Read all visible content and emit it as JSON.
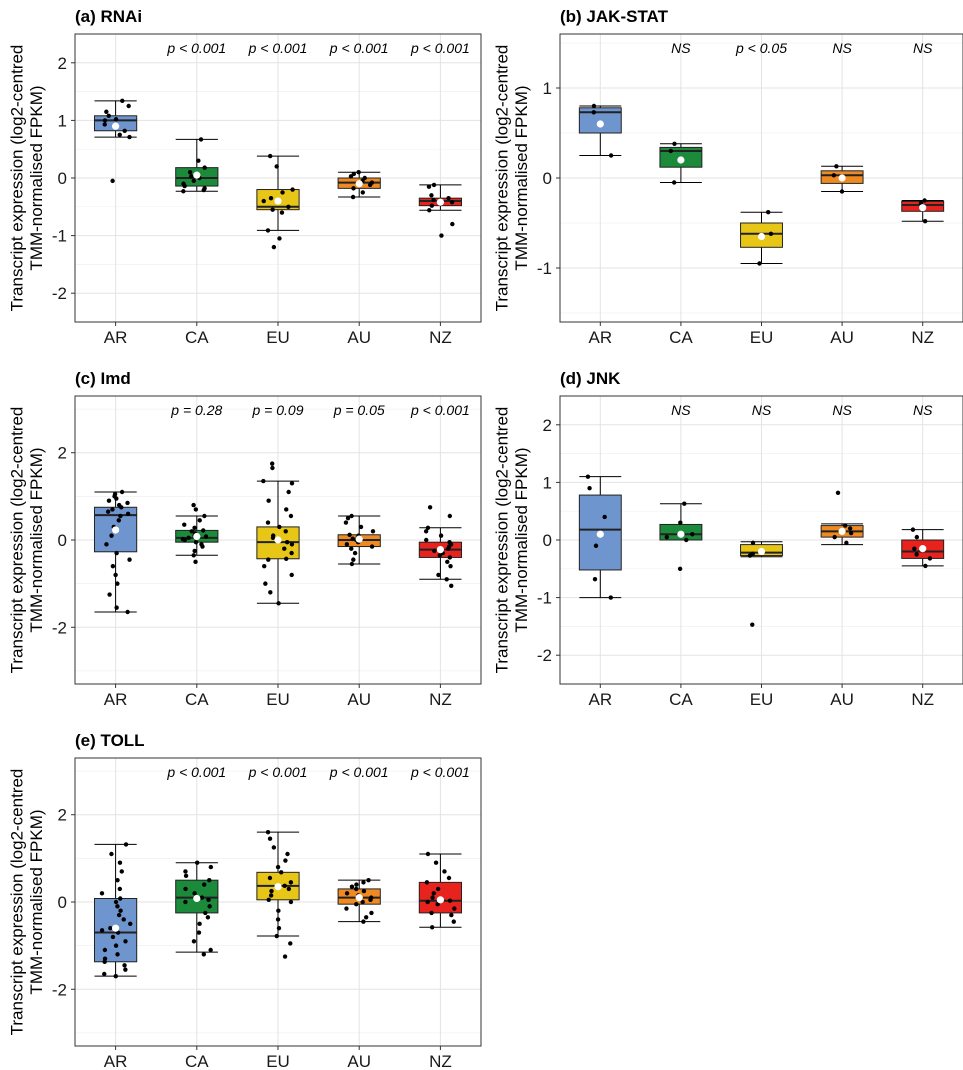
{
  "y_label_lines": [
    "Transcript expression (log2-centred",
    "TMM-normalised FPKM)"
  ],
  "colors": {
    "AR": "#6f95cf",
    "CA": "#1b8a3a",
    "EU": "#e8c618",
    "AU": "#ef8a23",
    "NZ": "#e8231e"
  },
  "chart_data": [
    {
      "type": "box",
      "title": "(a) RNAi",
      "categories": [
        "AR",
        "CA",
        "EU",
        "AU",
        "NZ"
      ],
      "ylim": [
        -2.5,
        2.5
      ],
      "yticks": [
        -2,
        -1,
        0,
        1,
        2
      ],
      "grid": true,
      "p_values": [
        "",
        "p < 0.001",
        "p < 0.001",
        "p < 0.001",
        "p < 0.001"
      ],
      "boxes": [
        {
          "category": "AR",
          "whisker_low": 0.71,
          "q1": 0.82,
          "median": 1.0,
          "q3": 1.08,
          "whisker_high": 1.34,
          "mean": 0.9,
          "points": [
            -0.05,
            0.71,
            0.75,
            0.82,
            0.93,
            1.0,
            1.02,
            1.08,
            1.15,
            1.25,
            1.34
          ]
        },
        {
          "category": "CA",
          "whisker_low": -0.23,
          "q1": -0.14,
          "median": 0.0,
          "q3": 0.18,
          "whisker_high": 0.67,
          "mean": 0.05,
          "points": [
            -0.23,
            -0.21,
            -0.18,
            -0.14,
            -0.1,
            -0.05,
            0.0,
            0.03,
            0.1,
            0.18,
            0.3,
            0.67
          ]
        },
        {
          "category": "EU",
          "whisker_low": -0.91,
          "q1": -0.55,
          "median": -0.5,
          "q3": -0.2,
          "whisker_high": 0.38,
          "mean": -0.4,
          "points": [
            -1.2,
            -1.05,
            -0.91,
            -0.6,
            -0.55,
            -0.5,
            -0.4,
            -0.35,
            -0.25,
            -0.2,
            0.2,
            0.38
          ]
        },
        {
          "category": "AU",
          "whisker_low": -0.33,
          "q1": -0.18,
          "median": -0.08,
          "q3": 0.0,
          "whisker_high": 0.1,
          "mean": -0.1,
          "points": [
            -0.33,
            -0.25,
            -0.18,
            -0.12,
            -0.08,
            -0.05,
            0.0,
            0.03,
            0.07,
            0.1
          ]
        },
        {
          "category": "NZ",
          "whisker_low": -0.56,
          "q1": -0.48,
          "median": -0.4,
          "q3": -0.35,
          "whisker_high": -0.12,
          "mean": -0.42,
          "points": [
            -1.0,
            -0.8,
            -0.56,
            -0.48,
            -0.42,
            -0.38,
            -0.35,
            -0.3,
            -0.15,
            -0.12
          ]
        }
      ]
    },
    {
      "type": "box",
      "title": "(b) JAK-STAT",
      "categories": [
        "AR",
        "CA",
        "EU",
        "AU",
        "NZ"
      ],
      "ylim": [
        -1.6,
        1.6
      ],
      "yticks": [
        -1,
        0,
        1
      ],
      "grid": true,
      "p_values": [
        "",
        "NS",
        "p < 0.05",
        "NS",
        "NS"
      ],
      "boxes": [
        {
          "category": "AR",
          "whisker_low": 0.25,
          "q1": 0.5,
          "median": 0.73,
          "q3": 0.78,
          "whisker_high": 0.8,
          "mean": 0.6,
          "points": [
            0.25,
            0.73,
            0.8
          ]
        },
        {
          "category": "CA",
          "whisker_low": -0.05,
          "q1": 0.12,
          "median": 0.3,
          "q3": 0.34,
          "whisker_high": 0.38,
          "mean": 0.2,
          "points": [
            -0.05,
            0.3,
            0.38
          ]
        },
        {
          "category": "EU",
          "whisker_low": -0.95,
          "q1": -0.77,
          "median": -0.62,
          "q3": -0.5,
          "whisker_high": -0.38,
          "mean": -0.65,
          "points": [
            -0.95,
            -0.62,
            -0.38
          ]
        },
        {
          "category": "AU",
          "whisker_low": -0.15,
          "q1": -0.06,
          "median": 0.03,
          "q3": 0.08,
          "whisker_high": 0.13,
          "mean": 0.0,
          "points": [
            -0.15,
            0.03,
            0.13
          ]
        },
        {
          "category": "NZ",
          "whisker_low": -0.48,
          "q1": -0.37,
          "median": -0.3,
          "q3": -0.26,
          "whisker_high": -0.25,
          "mean": -0.33,
          "points": [
            -0.48,
            -0.28,
            -0.25
          ]
        }
      ]
    },
    {
      "type": "box",
      "title": "(c) Imd",
      "categories": [
        "AR",
        "CA",
        "EU",
        "AU",
        "NZ"
      ],
      "ylim": [
        -3.3,
        3.3
      ],
      "yticks": [
        -2,
        0,
        2
      ],
      "grid": true,
      "p_values": [
        "",
        "p = 0.28",
        "p = 0.09",
        "p = 0.05",
        "p < 0.001"
      ],
      "boxes": [
        {
          "category": "AR",
          "whisker_low": -1.65,
          "q1": -0.27,
          "median": 0.57,
          "q3": 0.75,
          "whisker_high": 1.1,
          "mean": 0.23,
          "points": [
            -1.65,
            -1.55,
            -1.25,
            -1.0,
            -0.8,
            -0.6,
            -0.45,
            -0.3,
            -0.1,
            0.1,
            0.3,
            0.45,
            0.55,
            0.6,
            0.65,
            0.7,
            0.75,
            0.8,
            0.85,
            0.9,
            0.95,
            1.0,
            1.05,
            1.1
          ]
        },
        {
          "category": "CA",
          "whisker_low": -0.35,
          "q1": -0.05,
          "median": 0.05,
          "q3": 0.22,
          "whisker_high": 0.55,
          "mean": 0.08,
          "points": [
            -0.5,
            -0.35,
            -0.25,
            -0.15,
            -0.1,
            -0.05,
            0.0,
            0.02,
            0.05,
            0.08,
            0.1,
            0.15,
            0.2,
            0.22,
            0.28,
            0.35,
            0.45,
            0.55,
            0.7,
            0.8
          ]
        },
        {
          "category": "EU",
          "whisker_low": -1.45,
          "q1": -0.43,
          "median": -0.05,
          "q3": 0.3,
          "whisker_high": 1.35,
          "mean": 0.0,
          "points": [
            -1.45,
            -1.2,
            -1.0,
            -0.8,
            -0.6,
            -0.45,
            -0.43,
            -0.3,
            -0.2,
            -0.1,
            -0.05,
            0.0,
            0.05,
            0.1,
            0.2,
            0.3,
            0.4,
            0.55,
            0.7,
            0.9,
            1.1,
            1.3,
            1.35,
            1.65,
            1.75
          ]
        },
        {
          "category": "AU",
          "whisker_low": -0.55,
          "q1": -0.15,
          "median": 0.0,
          "q3": 0.12,
          "whisker_high": 0.55,
          "mean": 0.02,
          "points": [
            -0.55,
            -0.45,
            -0.3,
            -0.2,
            -0.15,
            -0.1,
            -0.05,
            0.0,
            0.03,
            0.06,
            0.1,
            0.12,
            0.2,
            0.3,
            0.4,
            0.5,
            0.55
          ]
        },
        {
          "category": "NZ",
          "whisker_low": -0.9,
          "q1": -0.4,
          "median": -0.22,
          "q3": -0.05,
          "whisker_high": 0.28,
          "mean": -0.22,
          "points": [
            -1.05,
            -0.9,
            -0.8,
            -0.6,
            -0.5,
            -0.4,
            -0.35,
            -0.3,
            -0.25,
            -0.2,
            -0.15,
            -0.1,
            -0.05,
            0.0,
            0.1,
            0.2,
            0.28,
            0.55,
            0.75
          ]
        }
      ]
    },
    {
      "type": "box",
      "title": "(d) JNK",
      "categories": [
        "AR",
        "CA",
        "EU",
        "AU",
        "NZ"
      ],
      "ylim": [
        -2.5,
        2.5
      ],
      "yticks": [
        -2,
        -1,
        0,
        1,
        2
      ],
      "grid": true,
      "p_values": [
        "",
        "NS",
        "NS",
        "NS",
        "NS"
      ],
      "boxes": [
        {
          "category": "AR",
          "whisker_low": -1.0,
          "q1": -0.52,
          "median": 0.18,
          "q3": 0.78,
          "whisker_high": 1.1,
          "mean": 0.1,
          "points": [
            -1.0,
            -0.68,
            -0.1,
            0.4,
            0.9,
            1.1
          ]
        },
        {
          "category": "CA",
          "whisker_low": 0.0,
          "q1": 0.0,
          "median": 0.1,
          "q3": 0.27,
          "whisker_high": 0.63,
          "mean": 0.1,
          "points": [
            -0.5,
            0.0,
            0.05,
            0.1,
            0.3,
            0.63
          ]
        },
        {
          "category": "EU",
          "whisker_low": -0.29,
          "q1": -0.27,
          "median": -0.22,
          "q3": -0.08,
          "whisker_high": -0.03,
          "mean": -0.2,
          "points": [
            -1.47,
            -0.27,
            -0.24,
            -0.2,
            -0.05
          ]
        },
        {
          "category": "AU",
          "whisker_low": -0.08,
          "q1": 0.05,
          "median": 0.15,
          "q3": 0.25,
          "whisker_high": 0.28,
          "mean": 0.15,
          "points": [
            -0.05,
            0.05,
            0.12,
            0.2,
            0.25,
            0.82
          ]
        },
        {
          "category": "NZ",
          "whisker_low": -0.45,
          "q1": -0.32,
          "median": -0.2,
          "q3": 0.0,
          "whisker_high": 0.18,
          "mean": -0.15,
          "points": [
            -0.45,
            -0.32,
            -0.25,
            -0.15,
            0.05,
            0.18
          ]
        }
      ]
    },
    {
      "type": "box",
      "title": "(e) TOLL",
      "categories": [
        "AR",
        "CA",
        "EU",
        "AU",
        "NZ"
      ],
      "ylim": [
        -3.3,
        3.3
      ],
      "yticks": [
        -2,
        0,
        2
      ],
      "grid": true,
      "p_values": [
        "",
        "p < 0.001",
        "p < 0.001",
        "p < 0.001",
        "p < 0.001"
      ],
      "boxes": [
        {
          "category": "AR",
          "whisker_low": -1.7,
          "q1": -1.37,
          "median": -0.7,
          "q3": 0.08,
          "whisker_high": 1.32,
          "mean": -0.6,
          "points": [
            -1.7,
            -1.65,
            -1.55,
            -1.45,
            -1.37,
            -1.3,
            -1.2,
            -1.1,
            -1.0,
            -0.9,
            -0.8,
            -0.7,
            -0.65,
            -0.6,
            -0.5,
            -0.4,
            -0.3,
            -0.2,
            -0.1,
            0.0,
            0.08,
            0.2,
            0.3,
            0.5,
            0.7,
            0.9,
            1.1,
            1.32
          ]
        },
        {
          "category": "CA",
          "whisker_low": -1.15,
          "q1": -0.25,
          "median": 0.1,
          "q3": 0.5,
          "whisker_high": 0.9,
          "mean": 0.08,
          "points": [
            -1.2,
            -1.1,
            -0.9,
            -0.7,
            -0.5,
            -0.35,
            -0.25,
            -0.1,
            0.0,
            0.05,
            0.1,
            0.2,
            0.3,
            0.4,
            0.5,
            0.6,
            0.7,
            0.8,
            0.9
          ]
        },
        {
          "category": "EU",
          "whisker_low": -0.78,
          "q1": 0.05,
          "median": 0.37,
          "q3": 0.68,
          "whisker_high": 1.6,
          "mean": 0.35,
          "points": [
            -1.25,
            -0.95,
            -0.78,
            -0.6,
            -0.4,
            -0.2,
            0.0,
            0.05,
            0.15,
            0.25,
            0.3,
            0.37,
            0.45,
            0.55,
            0.68,
            0.8,
            0.95,
            1.1,
            1.25,
            1.45,
            1.6
          ]
        },
        {
          "category": "AU",
          "whisker_low": -0.45,
          "q1": -0.05,
          "median": 0.1,
          "q3": 0.3,
          "whisker_high": 0.5,
          "mean": 0.1,
          "points": [
            -0.45,
            -0.35,
            -0.25,
            -0.15,
            -0.05,
            0.0,
            0.05,
            0.1,
            0.15,
            0.2,
            0.25,
            0.3,
            0.35,
            0.4,
            0.45,
            0.5
          ]
        },
        {
          "category": "NZ",
          "whisker_low": -0.58,
          "q1": -0.25,
          "median": 0.03,
          "q3": 0.45,
          "whisker_high": 1.1,
          "mean": 0.05,
          "points": [
            -0.58,
            -0.45,
            -0.3,
            -0.25,
            -0.15,
            -0.05,
            0.0,
            0.03,
            0.1,
            0.2,
            0.3,
            0.45,
            0.55,
            0.7,
            0.9,
            1.1
          ]
        }
      ]
    }
  ]
}
